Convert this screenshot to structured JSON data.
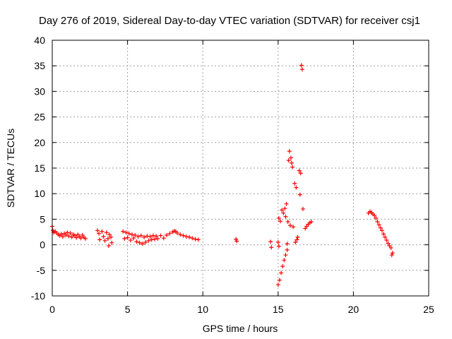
{
  "chart_data": {
    "type": "scatter",
    "title": "Day 276 of 2019, Sidereal Day-to-day VTEC variation (SDTVAR) for receiver csj1",
    "xlabel": "GPS time / hours",
    "ylabel": "SDTVAR / TECUs",
    "xlim": [
      0,
      25
    ],
    "ylim": [
      -10,
      40
    ],
    "x_ticks": [
      0,
      5,
      10,
      15,
      20,
      25
    ],
    "y_ticks": [
      -10,
      -5,
      0,
      5,
      10,
      15,
      20,
      25,
      30,
      35,
      40
    ],
    "x_tick_labels": [
      "0",
      "5",
      "10",
      "15",
      "20",
      "25"
    ],
    "y_tick_labels": [
      "-10",
      "-5",
      "0",
      "5",
      "10",
      "15",
      "20",
      "25",
      "30",
      "35",
      "40"
    ],
    "grid": true,
    "legend": "none",
    "marker": "plus",
    "marker_color": "#ff0000",
    "series": [
      {
        "name": "SDTVAR",
        "points": [
          [
            0.0,
            3.6
          ],
          [
            0.05,
            2.8
          ],
          [
            0.1,
            2.4
          ],
          [
            0.2,
            2.6
          ],
          [
            0.3,
            2.3
          ],
          [
            0.4,
            2.0
          ],
          [
            0.5,
            1.8
          ],
          [
            0.6,
            2.1
          ],
          [
            0.7,
            1.6
          ],
          [
            0.8,
            2.2
          ],
          [
            0.9,
            1.9
          ],
          [
            1.0,
            2.4
          ],
          [
            1.1,
            1.7
          ],
          [
            1.2,
            2.3
          ],
          [
            1.3,
            1.5
          ],
          [
            1.4,
            2.0
          ],
          [
            1.5,
            1.8
          ],
          [
            1.6,
            1.4
          ],
          [
            1.7,
            2.0
          ],
          [
            1.8,
            1.6
          ],
          [
            1.9,
            1.3
          ],
          [
            2.0,
            1.9
          ],
          [
            2.1,
            1.5
          ],
          [
            2.2,
            1.2
          ],
          [
            3.0,
            2.8
          ],
          [
            3.1,
            2.2
          ],
          [
            3.15,
            1.0
          ],
          [
            3.3,
            2.6
          ],
          [
            3.4,
            1.6
          ],
          [
            3.5,
            0.8
          ],
          [
            3.6,
            2.4
          ],
          [
            3.7,
            1.2
          ],
          [
            3.75,
            -0.2
          ],
          [
            3.8,
            2.0
          ],
          [
            3.9,
            1.5
          ],
          [
            3.95,
            0.4
          ],
          [
            4.7,
            2.6
          ],
          [
            4.8,
            1.2
          ],
          [
            4.9,
            2.4
          ],
          [
            5.0,
            1.4
          ],
          [
            5.1,
            2.2
          ],
          [
            5.2,
            0.9
          ],
          [
            5.3,
            2.0
          ],
          [
            5.4,
            1.3
          ],
          [
            5.5,
            1.9
          ],
          [
            5.6,
            0.6
          ],
          [
            5.7,
            1.6
          ],
          [
            5.8,
            0.4
          ],
          [
            5.9,
            1.8
          ],
          [
            6.0,
            0.2
          ],
          [
            6.1,
            1.5
          ],
          [
            6.2,
            0.5
          ],
          [
            6.3,
            1.7
          ],
          [
            6.4,
            0.8
          ],
          [
            6.5,
            1.6
          ],
          [
            6.6,
            1.0
          ],
          [
            6.7,
            1.8
          ],
          [
            6.8,
            1.1
          ],
          [
            6.9,
            1.7
          ],
          [
            7.0,
            1.2
          ],
          [
            7.2,
            1.8
          ],
          [
            7.4,
            1.3
          ],
          [
            7.6,
            1.9
          ],
          [
            7.8,
            2.2
          ],
          [
            8.0,
            2.5
          ],
          [
            8.1,
            2.7
          ],
          [
            8.2,
            2.6
          ],
          [
            8.3,
            2.3
          ],
          [
            8.5,
            2.0
          ],
          [
            8.7,
            1.8
          ],
          [
            8.9,
            1.6
          ],
          [
            9.1,
            1.5
          ],
          [
            9.3,
            1.3
          ],
          [
            9.5,
            1.1
          ],
          [
            9.7,
            1.0
          ],
          [
            12.2,
            1.1
          ],
          [
            12.25,
            0.7
          ],
          [
            14.5,
            0.6
          ],
          [
            14.55,
            -0.5
          ],
          [
            15.0,
            0.5
          ],
          [
            15.05,
            -0.3
          ],
          [
            15.0,
            -7.8
          ],
          [
            15.1,
            -6.9
          ],
          [
            15.05,
            5.2
          ],
          [
            15.15,
            4.6
          ],
          [
            15.2,
            -5.5
          ],
          [
            15.25,
            6.8
          ],
          [
            15.3,
            -4.2
          ],
          [
            15.35,
            6.2
          ],
          [
            15.4,
            -3.0
          ],
          [
            15.45,
            7.1
          ],
          [
            15.5,
            -2.0
          ],
          [
            15.5,
            5.5
          ],
          [
            15.55,
            8.0
          ],
          [
            15.6,
            -1.0
          ],
          [
            15.6,
            0.2
          ],
          [
            15.65,
            4.5
          ],
          [
            15.7,
            16.5
          ],
          [
            15.75,
            18.3
          ],
          [
            15.8,
            3.8
          ],
          [
            15.85,
            17.0
          ],
          [
            15.9,
            16.0
          ],
          [
            15.95,
            15.2
          ],
          [
            16.0,
            3.5
          ],
          [
            16.1,
            12.0
          ],
          [
            16.15,
            0.5
          ],
          [
            16.2,
            11.2
          ],
          [
            16.25,
            1.0
          ],
          [
            16.3,
            1.5
          ],
          [
            16.4,
            14.5
          ],
          [
            16.45,
            9.8
          ],
          [
            16.5,
            14.0
          ],
          [
            16.55,
            35.1
          ],
          [
            16.6,
            34.3
          ],
          [
            16.65,
            7.0
          ],
          [
            16.8,
            3.2
          ],
          [
            16.9,
            3.6
          ],
          [
            17.0,
            4.0
          ],
          [
            17.1,
            4.3
          ],
          [
            17.2,
            4.5
          ],
          [
            21.0,
            6.2
          ],
          [
            21.1,
            6.5
          ],
          [
            21.2,
            6.3
          ],
          [
            21.3,
            6.0
          ],
          [
            21.4,
            5.7
          ],
          [
            21.5,
            5.2
          ],
          [
            21.6,
            4.5
          ],
          [
            21.7,
            3.9
          ],
          [
            21.8,
            3.3
          ],
          [
            21.9,
            2.8
          ],
          [
            22.0,
            2.1
          ],
          [
            22.1,
            1.5
          ],
          [
            22.2,
            0.9
          ],
          [
            22.3,
            0.3
          ],
          [
            22.4,
            -0.2
          ],
          [
            22.5,
            -0.6
          ],
          [
            22.55,
            -2.0
          ],
          [
            22.6,
            -1.6
          ]
        ]
      }
    ]
  }
}
